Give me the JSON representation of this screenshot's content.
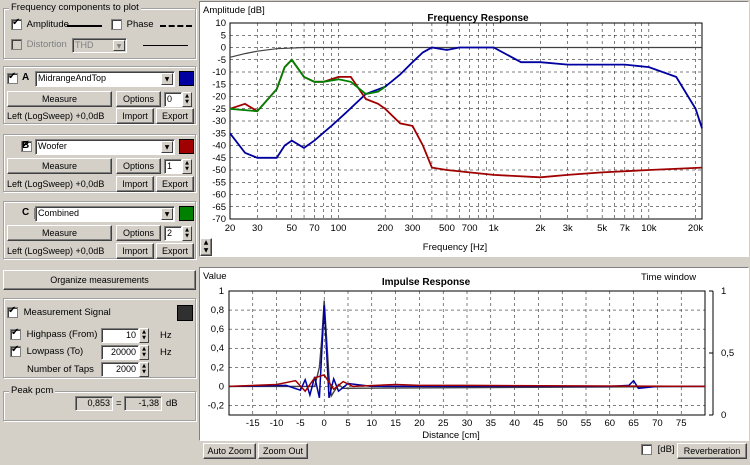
{
  "components": {
    "title": "Frequency components to plot",
    "amplitude": {
      "label": "Amplitude",
      "checked": true
    },
    "phase": {
      "label": "Phase",
      "checked": false
    },
    "distortion": {
      "label": "Distortion",
      "checked": false,
      "select": "THD"
    }
  },
  "measurements": [
    {
      "letter": "A",
      "name": "MidrangeAndTop",
      "color": "#0000a0",
      "checked": true,
      "measure": "Measure",
      "options": "Options",
      "index": "0",
      "info": "Left (LogSweep) +0,0dB",
      "import": "Import",
      "export": "Export"
    },
    {
      "letter": "B",
      "name": "Woofer",
      "color": "#a00000",
      "checked": true,
      "measure": "Measure",
      "options": "Options",
      "index": "1",
      "info": "Left (LogSweep) +0,0dB",
      "import": "Import",
      "export": "Export"
    },
    {
      "letter": "C",
      "name": "Combined",
      "color": "#008000",
      "checked": true,
      "measure": "Measure",
      "options": "Options",
      "index": "2",
      "info": "Left (LogSweep) +0,0dB",
      "import": "Import",
      "export": "Export"
    }
  ],
  "organize": "Organize measurements",
  "signal": {
    "label": "Measurement Signal",
    "checked": true,
    "color": "#303030",
    "highpass": {
      "label": "Highpass (From)",
      "value": "10",
      "unit": "Hz",
      "checked": true
    },
    "lowpass": {
      "label": "Lowpass (To)",
      "value": "20000",
      "unit": "Hz",
      "checked": true
    },
    "taps": {
      "label": "Number of Taps",
      "value": "2000"
    }
  },
  "peak": {
    "title": "Peak pcm",
    "value": "0,853",
    "eq": "=",
    "db": "-1,38",
    "unit": "dB"
  },
  "freq_chart": {
    "title": "Frequency Response",
    "ylabel": "Amplitude [dB]",
    "xlabel": "Frequency [Hz]",
    "yticks": [
      "10",
      "5",
      "0",
      "-5",
      "-10",
      "-15",
      "-20",
      "-25",
      "-30",
      "-35",
      "-40",
      "-45",
      "-50",
      "-55",
      "-60",
      "-65",
      "-70"
    ],
    "xticks": [
      {
        "v": 20,
        "l": "20"
      },
      {
        "v": 30,
        "l": "30"
      },
      {
        "v": 50,
        "l": "50"
      },
      {
        "v": 70,
        "l": "70"
      },
      {
        "v": 100,
        "l": "100"
      },
      {
        "v": 200,
        "l": "200"
      },
      {
        "v": 300,
        "l": "300"
      },
      {
        "v": 500,
        "l": "500"
      },
      {
        "v": 700,
        "l": "700"
      },
      {
        "v": 1000,
        "l": "1k"
      },
      {
        "v": 2000,
        "l": "2k"
      },
      {
        "v": 3000,
        "l": "3k"
      },
      {
        "v": 5000,
        "l": "5k"
      },
      {
        "v": 7000,
        "l": "7k"
      },
      {
        "v": 10000,
        "l": "10k"
      },
      {
        "v": 20000,
        "l": "20k"
      }
    ]
  },
  "chart_data": [
    {
      "type": "line",
      "title": "Frequency Response",
      "xlabel": "Frequency [Hz]",
      "ylabel": "Amplitude [dB]",
      "xscale": "log",
      "xlim": [
        20,
        22000
      ],
      "ylim": [
        -70,
        10
      ],
      "grid": true,
      "series": [
        {
          "color": "#404040",
          "points": [
            [
              20,
              -4
            ],
            [
              25,
              -2.5
            ],
            [
              30,
              -1.5
            ],
            [
              40,
              -0.5
            ],
            [
              60,
              0
            ],
            [
              100,
              0
            ],
            [
              1000,
              0
            ],
            [
              22000,
              0
            ]
          ]
        },
        {
          "color": "#0000a0",
          "points": [
            [
              20,
              -35
            ],
            [
              25,
              -43
            ],
            [
              30,
              -45
            ],
            [
              40,
              -45
            ],
            [
              45,
              -40
            ],
            [
              50,
              -38
            ],
            [
              60,
              -41
            ],
            [
              70,
              -38
            ],
            [
              90,
              -32
            ],
            [
              110,
              -27
            ],
            [
              150,
              -19
            ],
            [
              200,
              -16
            ],
            [
              250,
              -11
            ],
            [
              300,
              -6
            ],
            [
              350,
              -2
            ],
            [
              400,
              0
            ],
            [
              500,
              -1
            ],
            [
              600,
              0
            ],
            [
              800,
              0
            ],
            [
              1000,
              0
            ],
            [
              1500,
              -6
            ],
            [
              2000,
              -6
            ],
            [
              3000,
              -7
            ],
            [
              5000,
              -7
            ],
            [
              7000,
              -7
            ],
            [
              10000,
              -8
            ],
            [
              15000,
              -12
            ],
            [
              20000,
              -25
            ],
            [
              22000,
              -33
            ]
          ]
        },
        {
          "color": "#a00000",
          "points": [
            [
              20,
              -25
            ],
            [
              25,
              -23
            ],
            [
              30,
              -26
            ],
            [
              40,
              -17
            ],
            [
              45,
              -8
            ],
            [
              50,
              -5
            ],
            [
              60,
              -12
            ],
            [
              70,
              -14
            ],
            [
              80,
              -14
            ],
            [
              100,
              -12
            ],
            [
              120,
              -12
            ],
            [
              150,
              -21
            ],
            [
              180,
              -23
            ],
            [
              200,
              -25
            ],
            [
              250,
              -31
            ],
            [
              300,
              -32
            ],
            [
              350,
              -40
            ],
            [
              400,
              -49
            ],
            [
              500,
              -50
            ],
            [
              700,
              -51
            ],
            [
              1000,
              -52
            ],
            [
              2000,
              -53
            ],
            [
              3000,
              -52
            ],
            [
              5000,
              -51
            ],
            [
              10000,
              -50
            ],
            [
              22000,
              -49
            ]
          ]
        },
        {
          "color": "#008000",
          "points": [
            [
              20,
              -25
            ],
            [
              30,
              -26
            ],
            [
              40,
              -17
            ],
            [
              45,
              -8
            ],
            [
              50,
              -5
            ],
            [
              60,
              -12
            ],
            [
              70,
              -14
            ],
            [
              80,
              -14
            ],
            [
              100,
              -13
            ],
            [
              120,
              -14
            ],
            [
              150,
              -19
            ],
            [
              180,
              -18
            ],
            [
              200,
              -16
            ]
          ]
        }
      ]
    },
    {
      "type": "line",
      "title": "Impulse Response",
      "xlabel": "Distance [cm]",
      "ylabel": "Value",
      "xlim": [
        -20,
        80
      ],
      "ylim": [
        -0.3,
        1.0
      ],
      "grid": true,
      "series": [
        {
          "color": "#404040",
          "points": [
            [
              -20,
              0
            ],
            [
              -2,
              0
            ],
            [
              -1,
              0.2
            ],
            [
              -0.5,
              0.5
            ],
            [
              0,
              0.9
            ],
            [
              0.5,
              0.5
            ],
            [
              1,
              0.1
            ],
            [
              1.5,
              -0.1
            ],
            [
              3,
              0.02
            ],
            [
              4,
              -0.02
            ],
            [
              80,
              0
            ]
          ]
        },
        {
          "color": "#0000a0",
          "points": [
            [
              -20,
              0
            ],
            [
              -8,
              0.01
            ],
            [
              -5,
              -0.04
            ],
            [
              -4,
              0.07
            ],
            [
              -3,
              -0.09
            ],
            [
              -2,
              0.1
            ],
            [
              -1,
              -0.12
            ],
            [
              0,
              0.85
            ],
            [
              1,
              -0.12
            ],
            [
              2,
              0.08
            ],
            [
              3,
              -0.05
            ],
            [
              5,
              0.03
            ],
            [
              10,
              0
            ],
            [
              40,
              0
            ],
            [
              60,
              0
            ],
            [
              64,
              0.01
            ],
            [
              65,
              0.06
            ],
            [
              66,
              -0.02
            ],
            [
              70,
              0
            ],
            [
              80,
              0
            ]
          ]
        },
        {
          "color": "#a00000",
          "points": [
            [
              -20,
              0
            ],
            [
              -10,
              0.02
            ],
            [
              -6,
              0.06
            ],
            [
              -4,
              -0.05
            ],
            [
              -2,
              0.09
            ],
            [
              0,
              0.12
            ],
            [
              2,
              -0.03
            ],
            [
              4,
              0.05
            ],
            [
              6,
              0
            ],
            [
              15,
              0.02
            ],
            [
              20,
              0.01
            ],
            [
              30,
              0.01
            ],
            [
              80,
              0
            ]
          ]
        }
      ]
    }
  ],
  "imp_chart": {
    "title": "Impulse Response",
    "ylabel": "Value",
    "xlabel": "Distance [cm]",
    "window_label": "Time window",
    "yticks": [
      {
        "v": 1,
        "l": "1"
      },
      {
        "v": 0.8,
        "l": "0,8"
      },
      {
        "v": 0.6,
        "l": "0,6"
      },
      {
        "v": 0.4,
        "l": "0,4"
      },
      {
        "v": 0.2,
        "l": "0,2"
      },
      {
        "v": 0,
        "l": "0"
      },
      {
        "v": -0.2,
        "l": "-0,2"
      }
    ],
    "yticks_right": [
      {
        "v": 1,
        "l": "1"
      },
      {
        "v": 0.5,
        "l": "0,5"
      },
      {
        "v": 0,
        "l": "0"
      }
    ],
    "xticks": [
      "-15",
      "-10",
      "-5",
      "0",
      "5",
      "10",
      "15",
      "20",
      "25",
      "30",
      "35",
      "40",
      "45",
      "50",
      "55",
      "60",
      "65",
      "70",
      "75"
    ]
  },
  "bottom": {
    "auto_zoom": "Auto Zoom",
    "zoom_out": "Zoom Out",
    "db_label": "[dB]",
    "reverberation": "Reverberation"
  }
}
